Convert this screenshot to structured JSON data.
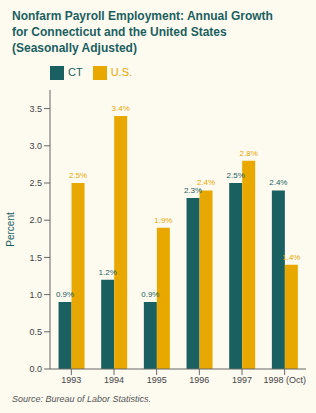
{
  "chart_data": {
    "type": "bar",
    "title": "Nonfarm Payroll Employment: Annual Growth\nfor Connecticut and the United States\n(Seasonally Adjusted)",
    "y_label": "Percent",
    "annotations": [
      "Source: Bureau of Labor Statistics."
    ],
    "categories": [
      "1993",
      "1994",
      "1995",
      "1996",
      "1997",
      "1998 (Oct)"
    ],
    "series": [
      {
        "name": "CT",
        "color": "#1a6060",
        "values": [
          0.9,
          1.2,
          0.9,
          2.3,
          2.5,
          2.4
        ],
        "value_labels": [
          "0.9%",
          "1.2%",
          "0.9%",
          "2.3%",
          "2.5%",
          "2.4%"
        ]
      },
      {
        "name": "U.S.",
        "color": "#e8a800",
        "values": [
          2.5,
          3.4,
          1.9,
          2.4,
          2.8,
          1.4
        ],
        "value_labels": [
          "2.5%",
          "3.4%",
          "1.9%",
          "2.4%",
          "2.8%",
          "1.4%"
        ]
      }
    ],
    "ylim": [
      0,
      3.75
    ],
    "yticks": [
      {
        "value": 0.0,
        "label": "0.0"
      },
      0.5,
      {
        "value": 1.0,
        "label": "1.0"
      },
      1.5,
      {
        "value": 2.0,
        "label": "2.0"
      },
      2.5,
      {
        "value": 3.0,
        "label": "3.0"
      },
      3.5
    ],
    "grid": false,
    "legend": "top",
    "data_labels": true
  }
}
